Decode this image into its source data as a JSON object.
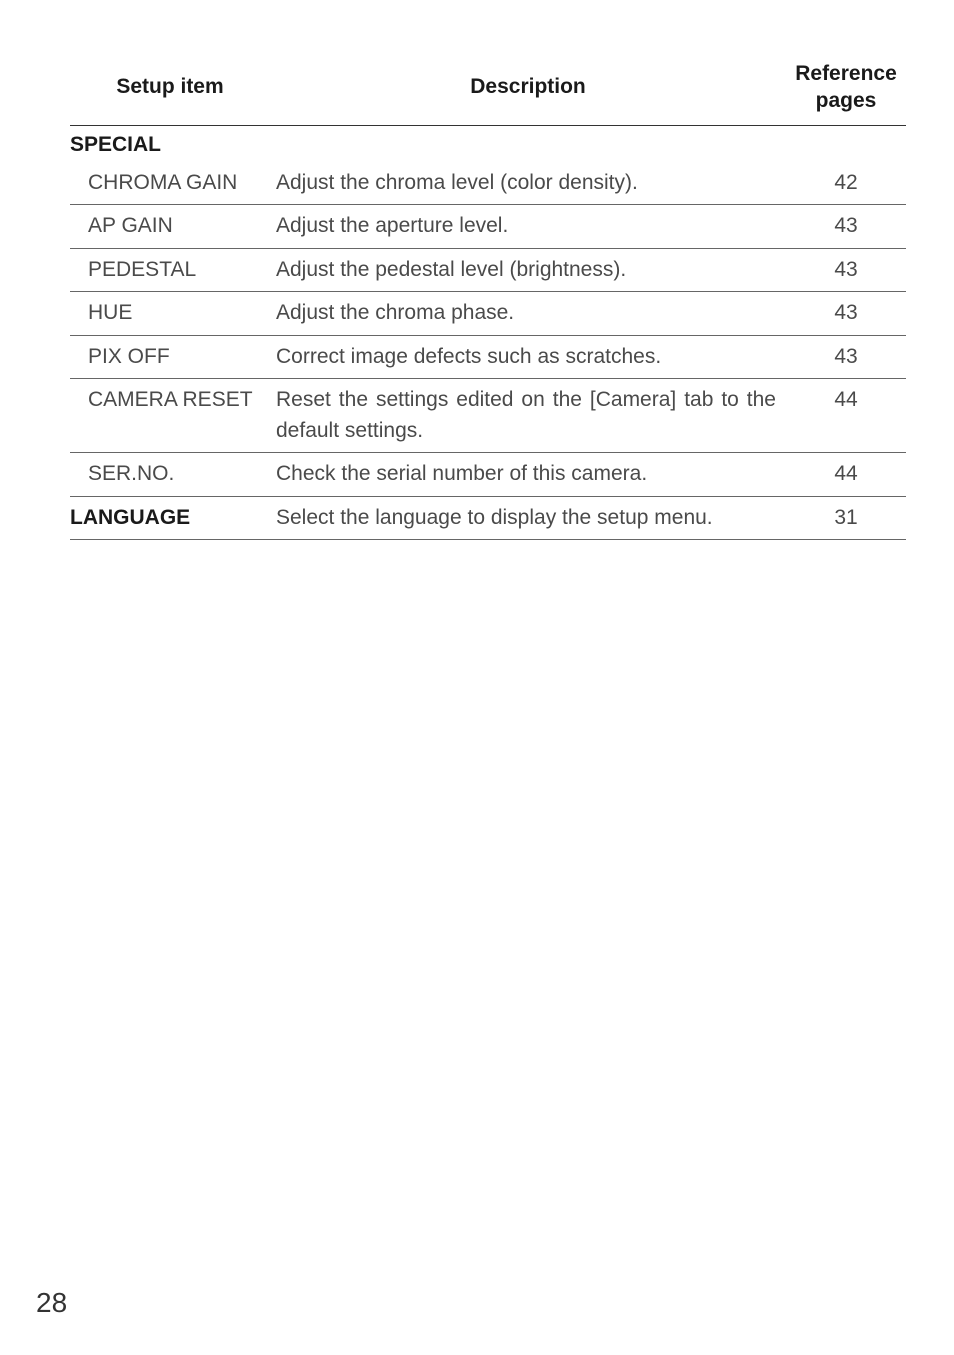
{
  "header": {
    "col_setup": "Setup item",
    "col_desc": "Description",
    "col_ref": "Reference pages"
  },
  "sections": {
    "special": {
      "label": "SPECIAL",
      "rows": [
        {
          "item": "CHROMA GAIN",
          "desc": "Adjust the chroma level (color density).",
          "ref": "42"
        },
        {
          "item": "AP GAIN",
          "desc": "Adjust the aperture level.",
          "ref": "43"
        },
        {
          "item": "PEDESTAL",
          "desc": "Adjust the pedestal level (brightness).",
          "ref": "43"
        },
        {
          "item": "HUE",
          "desc": "Adjust the chroma phase.",
          "ref": "43"
        },
        {
          "item": "PIX OFF",
          "desc": "Correct image defects such as scratches.",
          "ref": "43"
        },
        {
          "item": "CAMERA RESET",
          "desc": "Reset the settings edited on the [Camera] tab to the default settings.",
          "ref": "44"
        },
        {
          "item": "SER.NO.",
          "desc": "Check the serial number of this camera.",
          "ref": "44"
        }
      ]
    },
    "language": {
      "label": "LANGUAGE",
      "desc": "Select the language to display the setup menu.",
      "ref": "31"
    }
  },
  "page_number": "28",
  "style": {
    "page_bg": "#ffffff",
    "text_color": "#4a4a4a",
    "header_color": "#1a1a1a",
    "rule_color": "#333333",
    "subrule_color": "#666666",
    "font_body_pt": 16,
    "font_pagenum_pt": 21
  }
}
